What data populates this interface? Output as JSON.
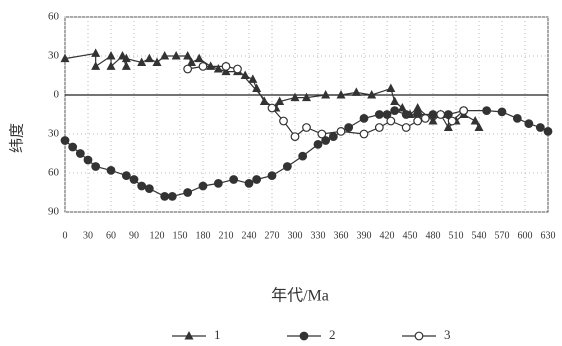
{
  "chart_data": {
    "type": "scatter",
    "xlabel": "年代/Ma",
    "ylabel": "纬度",
    "xlim": [
      0,
      630
    ],
    "xticks": [
      0,
      30,
      60,
      90,
      120,
      150,
      180,
      210,
      240,
      270,
      300,
      330,
      360,
      390,
      420,
      450,
      480,
      510,
      540,
      570,
      600,
      630
    ],
    "ylim": [
      -90,
      60
    ],
    "yticks": [
      60,
      30,
      0,
      {
        "value": -30,
        "label": "30"
      },
      {
        "value": -60,
        "label": "60"
      },
      {
        "value": -90,
        "label": "90"
      }
    ],
    "grid": true,
    "series": [
      {
        "name": "1",
        "marker": "triangle",
        "color": "#333333",
        "x": [
          0,
          40,
          40,
          60,
          60,
          75,
          80,
          80,
          100,
          110,
          120,
          130,
          145,
          160,
          165,
          175,
          190,
          200,
          210,
          225,
          235,
          245,
          250,
          260,
          275,
          280,
          300,
          315,
          340,
          360,
          380,
          400,
          425,
          430,
          440,
          450,
          460,
          480,
          490,
          500,
          510,
          520,
          535,
          540
        ],
        "values": [
          28,
          32,
          22,
          30,
          22,
          30,
          22,
          28,
          25,
          28,
          25,
          30,
          30,
          30,
          25,
          28,
          22,
          20,
          18,
          18,
          15,
          12,
          5,
          -5,
          -10,
          -5,
          -2,
          -2,
          0,
          0,
          2,
          0,
          5,
          -5,
          -10,
          -15,
          -10,
          -20,
          -15,
          -25,
          -20,
          -15,
          -20,
          -25
        ]
      },
      {
        "name": "2",
        "marker": "circle",
        "color": "#333333",
        "x": [
          0,
          10,
          20,
          30,
          40,
          60,
          80,
          90,
          100,
          110,
          130,
          140,
          160,
          180,
          200,
          220,
          240,
          250,
          270,
          290,
          310,
          330,
          340,
          350,
          370,
          390,
          410,
          420,
          430,
          445,
          460,
          480,
          500,
          520,
          550,
          570,
          590,
          605,
          620,
          630
        ],
        "values": [
          -35,
          -40,
          -45,
          -50,
          -55,
          -58,
          -62,
          -65,
          -70,
          -72,
          -78,
          -78,
          -75,
          -70,
          -68,
          -65,
          -68,
          -65,
          -62,
          -55,
          -47,
          -38,
          -35,
          -32,
          -25,
          -18,
          -15,
          -15,
          -12,
          -15,
          -15,
          -15,
          -15,
          -12,
          -12,
          -13,
          -18,
          -22,
          -25,
          -28
        ]
      },
      {
        "name": "3",
        "marker": "open-circle",
        "color": "#333333",
        "x": [
          160,
          180,
          210,
          225,
          270,
          285,
          300,
          315,
          335,
          360,
          390,
          410,
          425,
          445,
          460,
          470,
          490,
          505,
          520
        ],
        "values": [
          20,
          22,
          22,
          20,
          -10,
          -20,
          -32,
          -25,
          -30,
          -28,
          -30,
          -25,
          -20,
          -25,
          -20,
          -18,
          -15,
          -20,
          -12
        ]
      }
    ]
  }
}
